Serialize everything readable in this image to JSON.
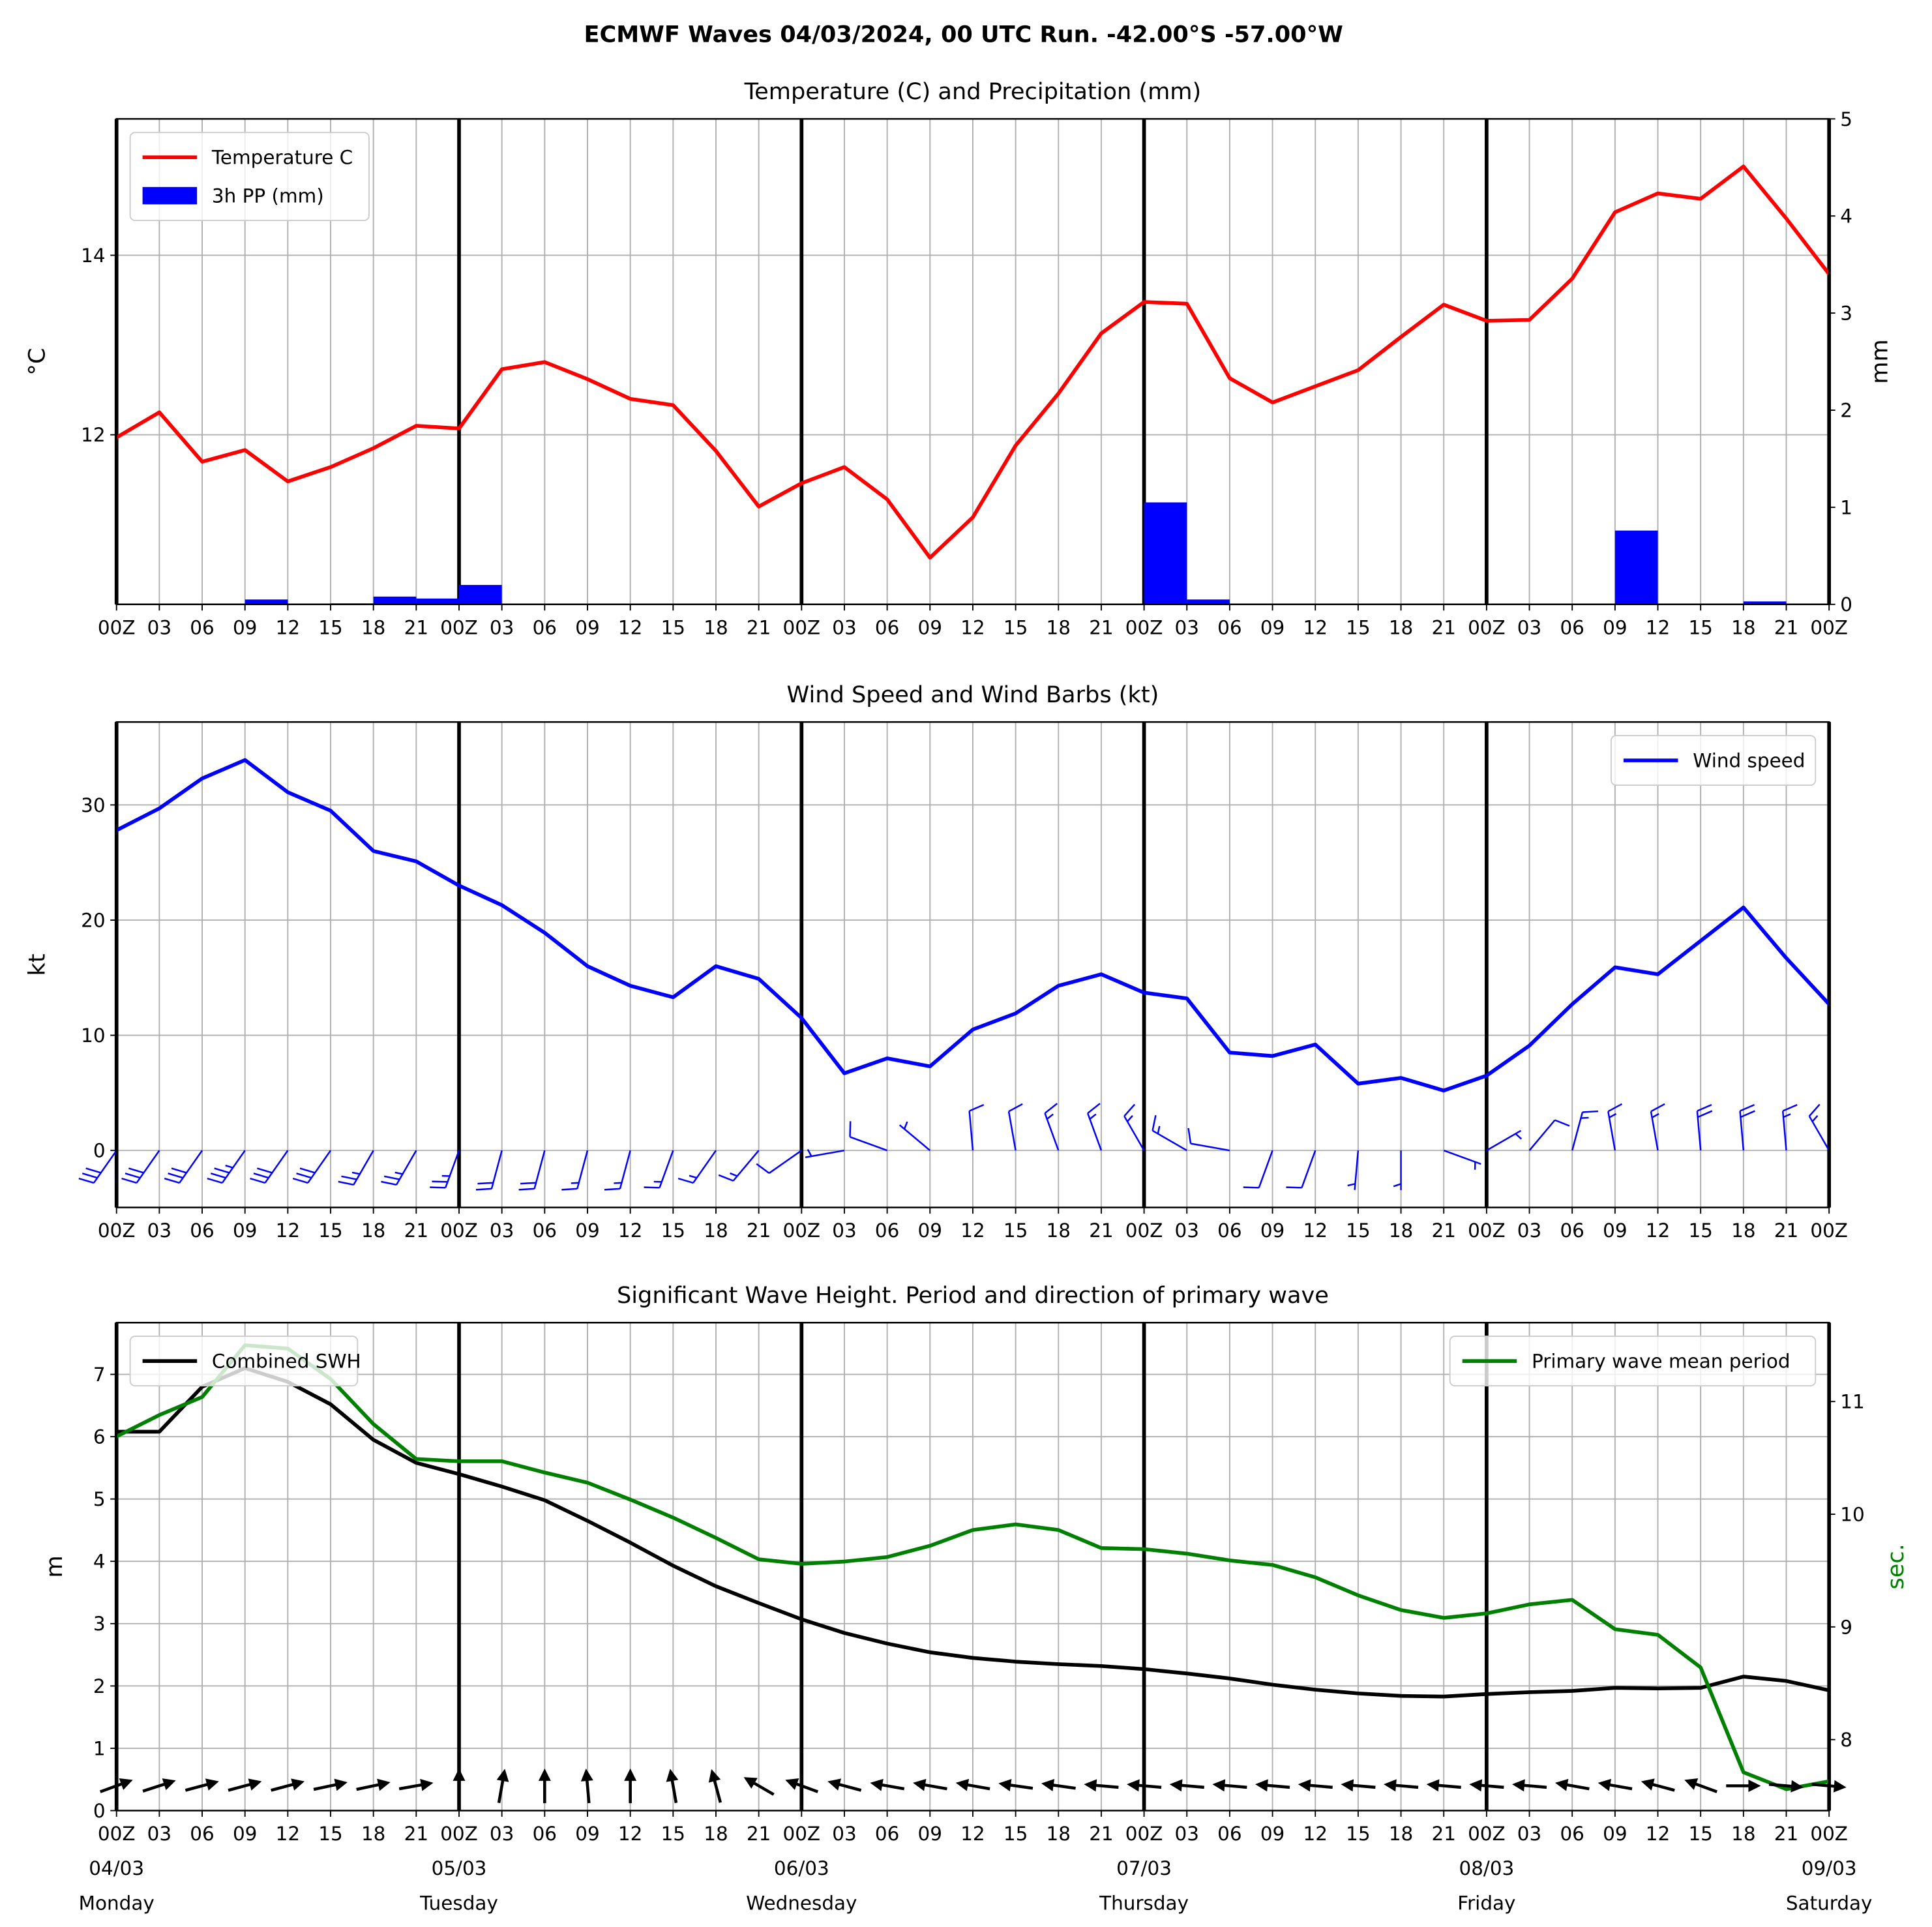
{
  "title": "ECMWF Waves 04/03/2024, 00 UTC Run. -42.00°S -57.00°W",
  "chart_data": [
    {
      "type": "line",
      "title": "Temperature (C) and Precipitation (mm)",
      "ylabel": "°C",
      "y2label": "mm",
      "x": [
        0,
        3,
        6,
        9,
        12,
        15,
        18,
        21,
        24,
        27,
        30,
        33,
        36,
        39,
        42,
        45,
        48,
        51,
        54,
        57,
        60,
        63,
        66,
        69,
        72,
        75,
        78,
        81,
        84,
        87,
        90,
        93,
        96,
        99,
        102,
        105,
        108,
        111,
        114,
        117,
        120
      ],
      "xlim": [
        0,
        120
      ],
      "xticks": [
        {
          "value": 0,
          "label": "00Z"
        },
        {
          "value": 3,
          "label": "03"
        },
        {
          "value": 6,
          "label": "06"
        },
        {
          "value": 9,
          "label": "09"
        },
        {
          "value": 12,
          "label": "12"
        },
        {
          "value": 15,
          "label": "15"
        },
        {
          "value": 18,
          "label": "18"
        },
        {
          "value": 21,
          "label": "21"
        },
        {
          "value": 24,
          "label": "00Z"
        },
        {
          "value": 27,
          "label": "03"
        },
        {
          "value": 30,
          "label": "06"
        },
        {
          "value": 33,
          "label": "09"
        },
        {
          "value": 36,
          "label": "12"
        },
        {
          "value": 39,
          "label": "15"
        },
        {
          "value": 42,
          "label": "18"
        },
        {
          "value": 45,
          "label": "21"
        },
        {
          "value": 48,
          "label": "00Z"
        },
        {
          "value": 51,
          "label": "03"
        },
        {
          "value": 54,
          "label": "06"
        },
        {
          "value": 57,
          "label": "09"
        },
        {
          "value": 60,
          "label": "12"
        },
        {
          "value": 63,
          "label": "15"
        },
        {
          "value": 66,
          "label": "18"
        },
        {
          "value": 69,
          "label": "21"
        },
        {
          "value": 72,
          "label": "00Z"
        },
        {
          "value": 75,
          "label": "03"
        },
        {
          "value": 78,
          "label": "06"
        },
        {
          "value": 81,
          "label": "09"
        },
        {
          "value": 84,
          "label": "12"
        },
        {
          "value": 87,
          "label": "15"
        },
        {
          "value": 90,
          "label": "18"
        },
        {
          "value": 93,
          "label": "21"
        },
        {
          "value": 96,
          "label": "00Z"
        },
        {
          "value": 99,
          "label": "03"
        },
        {
          "value": 102,
          "label": "06"
        },
        {
          "value": 105,
          "label": "09"
        },
        {
          "value": 108,
          "label": "12"
        },
        {
          "value": 111,
          "label": "15"
        },
        {
          "value": 114,
          "label": "18"
        },
        {
          "value": 117,
          "label": "21"
        },
        {
          "value": 120,
          "label": "00Z"
        }
      ],
      "day_lines": [
        0,
        24,
        48,
        72,
        96,
        120
      ],
      "ylim": [
        10.11,
        15.52
      ],
      "yticks": [
        12,
        14
      ],
      "y2lim": [
        0,
        5
      ],
      "y2ticks": [
        0,
        1,
        2,
        3,
        4,
        5
      ],
      "grid": true,
      "series": [
        {
          "name": "Temperature C",
          "color": "#ff0000",
          "legend": "upper left",
          "values": [
            11.97,
            12.25,
            11.7,
            11.83,
            11.48,
            11.64,
            11.85,
            12.1,
            12.07,
            12.73,
            12.81,
            12.62,
            12.4,
            12.33,
            11.82,
            11.2,
            11.46,
            11.64,
            11.28,
            10.63,
            11.08,
            11.88,
            12.46,
            13.13,
            13.48,
            13.46,
            12.63,
            12.36,
            12.54,
            12.72,
            13.09,
            13.45,
            13.27,
            13.28,
            13.74,
            14.48,
            14.69,
            14.63,
            14.99,
            14.41,
            13.79
          ]
        },
        {
          "name": "3h PP (mm)",
          "color": "#0000ff",
          "style": "bar",
          "axis": "y2",
          "legend": "upper left",
          "values": [
            0,
            0,
            0,
            0.05,
            0,
            0.01,
            0.08,
            0.06,
            0.2,
            0,
            0,
            0,
            0,
            0,
            0,
            0,
            0,
            0,
            0,
            0,
            0,
            0,
            0,
            0,
            1.05,
            0.05,
            0,
            0,
            0,
            0,
            0,
            0,
            0,
            0,
            0,
            0.76,
            0,
            0,
            0.03,
            0,
            null
          ]
        }
      ]
    },
    {
      "type": "line",
      "title": "Wind Speed and Wind Barbs (kt)",
      "ylabel": "kt",
      "x": [
        0,
        3,
        6,
        9,
        12,
        15,
        18,
        21,
        24,
        27,
        30,
        33,
        36,
        39,
        42,
        45,
        48,
        51,
        54,
        57,
        60,
        63,
        66,
        69,
        72,
        75,
        78,
        81,
        84,
        87,
        90,
        93,
        96,
        99,
        102,
        105,
        108,
        111,
        114,
        117,
        120
      ],
      "xlim": [
        0,
        120
      ],
      "xticks": [
        {
          "value": 0,
          "label": "00Z"
        },
        {
          "value": 3,
          "label": "03"
        },
        {
          "value": 6,
          "label": "06"
        },
        {
          "value": 9,
          "label": "09"
        },
        {
          "value": 12,
          "label": "12"
        },
        {
          "value": 15,
          "label": "15"
        },
        {
          "value": 18,
          "label": "18"
        },
        {
          "value": 21,
          "label": "21"
        },
        {
          "value": 24,
          "label": "00Z"
        },
        {
          "value": 27,
          "label": "03"
        },
        {
          "value": 30,
          "label": "06"
        },
        {
          "value": 33,
          "label": "09"
        },
        {
          "value": 36,
          "label": "12"
        },
        {
          "value": 39,
          "label": "15"
        },
        {
          "value": 42,
          "label": "18"
        },
        {
          "value": 45,
          "label": "21"
        },
        {
          "value": 48,
          "label": "00Z"
        },
        {
          "value": 51,
          "label": "03"
        },
        {
          "value": 54,
          "label": "06"
        },
        {
          "value": 57,
          "label": "09"
        },
        {
          "value": 60,
          "label": "12"
        },
        {
          "value": 63,
          "label": "15"
        },
        {
          "value": 66,
          "label": "18"
        },
        {
          "value": 69,
          "label": "21"
        },
        {
          "value": 72,
          "label": "00Z"
        },
        {
          "value": 75,
          "label": "03"
        },
        {
          "value": 78,
          "label": "06"
        },
        {
          "value": 81,
          "label": "09"
        },
        {
          "value": 84,
          "label": "12"
        },
        {
          "value": 87,
          "label": "15"
        },
        {
          "value": 90,
          "label": "18"
        },
        {
          "value": 93,
          "label": "21"
        },
        {
          "value": 96,
          "label": "00Z"
        },
        {
          "value": 99,
          "label": "03"
        },
        {
          "value": 102,
          "label": "06"
        },
        {
          "value": 105,
          "label": "09"
        },
        {
          "value": 108,
          "label": "12"
        },
        {
          "value": 111,
          "label": "15"
        },
        {
          "value": 114,
          "label": "18"
        },
        {
          "value": 117,
          "label": "21"
        },
        {
          "value": 120,
          "label": "00Z"
        }
      ],
      "day_lines": [
        0,
        24,
        48,
        72,
        96,
        120
      ],
      "ylim": [
        -4.95,
        37.2
      ],
      "yticks": [
        0,
        10,
        20,
        30
      ],
      "grid": true,
      "series": [
        {
          "name": "Wind speed",
          "color": "#0000ff",
          "legend": "upper right",
          "values": [
            27.8,
            29.7,
            32.3,
            33.9,
            31.1,
            29.5,
            26.0,
            25.1,
            23.0,
            21.3,
            18.9,
            16.0,
            14.3,
            13.3,
            16.0,
            14.9,
            11.5,
            6.7,
            8.0,
            7.3,
            10.5,
            11.9,
            14.3,
            15.3,
            13.7,
            13.2,
            8.5,
            8.2,
            9.2,
            5.8,
            6.3,
            5.2,
            6.5,
            9.1,
            12.7,
            15.9,
            15.3,
            18.2,
            21.1,
            16.7,
            12.7
          ]
        }
      ],
      "barbs": {
        "color": "#0000ff",
        "directions": [
          215,
          215,
          215,
          215,
          215,
          215,
          210,
          210,
          200,
          195,
          195,
          195,
          195,
          200,
          215,
          220,
          235,
          260,
          290,
          310,
          355,
          350,
          340,
          340,
          330,
          300,
          280,
          200,
          200,
          185,
          180,
          110,
          60,
          40,
          15,
          350,
          350,
          355,
          355,
          355,
          330
        ]
      }
    },
    {
      "type": "line",
      "title": "Significant Wave Height. Period and direction of primary wave",
      "ylabel": "m",
      "y2label": "sec.",
      "y2label_color": "#008000",
      "x": [
        0,
        3,
        6,
        9,
        12,
        15,
        18,
        21,
        24,
        27,
        30,
        33,
        36,
        39,
        42,
        45,
        48,
        51,
        54,
        57,
        60,
        63,
        66,
        69,
        72,
        75,
        78,
        81,
        84,
        87,
        90,
        93,
        96,
        99,
        102,
        105,
        108,
        111,
        114,
        117,
        120
      ],
      "xlim": [
        0,
        120
      ],
      "xticks": [
        {
          "value": 0,
          "label": "00Z"
        },
        {
          "value": 3,
          "label": "03"
        },
        {
          "value": 6,
          "label": "06"
        },
        {
          "value": 9,
          "label": "09"
        },
        {
          "value": 12,
          "label": "12"
        },
        {
          "value": 15,
          "label": "15"
        },
        {
          "value": 18,
          "label": "18"
        },
        {
          "value": 21,
          "label": "21"
        },
        {
          "value": 24,
          "label": "00Z"
        },
        {
          "value": 27,
          "label": "03"
        },
        {
          "value": 30,
          "label": "06"
        },
        {
          "value": 33,
          "label": "09"
        },
        {
          "value": 36,
          "label": "12"
        },
        {
          "value": 39,
          "label": "15"
        },
        {
          "value": 42,
          "label": "18"
        },
        {
          "value": 45,
          "label": "21"
        },
        {
          "value": 48,
          "label": "00Z"
        },
        {
          "value": 51,
          "label": "03"
        },
        {
          "value": 54,
          "label": "06"
        },
        {
          "value": 57,
          "label": "09"
        },
        {
          "value": 60,
          "label": "12"
        },
        {
          "value": 63,
          "label": "15"
        },
        {
          "value": 66,
          "label": "18"
        },
        {
          "value": 69,
          "label": "21"
        },
        {
          "value": 72,
          "label": "00Z"
        },
        {
          "value": 75,
          "label": "03"
        },
        {
          "value": 78,
          "label": "06"
        },
        {
          "value": 81,
          "label": "09"
        },
        {
          "value": 84,
          "label": "12"
        },
        {
          "value": 87,
          "label": "15"
        },
        {
          "value": 90,
          "label": "18"
        },
        {
          "value": 93,
          "label": "21"
        },
        {
          "value": 96,
          "label": "00Z"
        },
        {
          "value": 99,
          "label": "03"
        },
        {
          "value": 102,
          "label": "06"
        },
        {
          "value": 105,
          "label": "09"
        },
        {
          "value": 108,
          "label": "12"
        },
        {
          "value": 111,
          "label": "15"
        },
        {
          "value": 114,
          "label": "18"
        },
        {
          "value": 117,
          "label": "21"
        },
        {
          "value": 120,
          "label": "00Z"
        }
      ],
      "day_lines": [
        0,
        24,
        48,
        72,
        96,
        120
      ],
      "day_ticks": [
        {
          "value": 0,
          "label": "04/03",
          "day": "Monday"
        },
        {
          "value": 24,
          "label": "05/03",
          "day": "Tuesday"
        },
        {
          "value": 48,
          "label": "06/03",
          "day": "Wednesday"
        },
        {
          "value": 72,
          "label": "07/03",
          "day": "Thursday"
        },
        {
          "value": 96,
          "label": "08/03",
          "day": "Friday"
        },
        {
          "value": 120,
          "label": "09/03",
          "day": "Saturday"
        }
      ],
      "ylim": [
        0,
        7.83
      ],
      "yticks": [
        0,
        1,
        2,
        3,
        4,
        5,
        6,
        7
      ],
      "y2lim": [
        7.37,
        11.7
      ],
      "y2ticks": [
        8,
        9,
        10,
        11
      ],
      "grid": true,
      "series": [
        {
          "name": "Combined SWH",
          "color": "#000000",
          "legend": "upper left",
          "values": [
            6.08,
            6.08,
            6.8,
            7.1,
            6.88,
            6.52,
            5.95,
            5.58,
            5.4,
            5.2,
            4.98,
            4.65,
            4.3,
            3.93,
            3.6,
            3.33,
            3.07,
            2.85,
            2.68,
            2.54,
            2.45,
            2.39,
            2.35,
            2.32,
            2.27,
            2.2,
            2.12,
            2.02,
            1.94,
            1.88,
            1.84,
            1.83,
            1.87,
            1.9,
            1.92,
            1.97,
            1.96,
            1.97,
            2.15,
            2.08,
            1.93
          ]
        },
        {
          "name": "Primary wave mean period",
          "color": "#008000",
          "axis": "y2",
          "legend": "upper right",
          "values": [
            10.69,
            10.88,
            11.04,
            11.5,
            11.47,
            11.2,
            10.8,
            10.49,
            10.47,
            10.47,
            10.37,
            10.28,
            10.13,
            9.97,
            9.79,
            9.6,
            9.56,
            9.58,
            9.62,
            9.72,
            9.86,
            9.91,
            9.86,
            9.7,
            9.69,
            9.65,
            9.59,
            9.55,
            9.44,
            9.28,
            9.15,
            9.08,
            9.12,
            9.2,
            9.24,
            8.98,
            8.93,
            8.64,
            7.71,
            7.56,
            7.63
          ]
        }
      ],
      "wave_arrows": {
        "color": "#000000",
        "directions": [
          250,
          252,
          255,
          255,
          255,
          258,
          258,
          260,
          180,
          190,
          180,
          175,
          180,
          170,
          165,
          120,
          110,
          105,
          100,
          100,
          100,
          98,
          98,
          95,
          95,
          95,
          95,
          95,
          95,
          95,
          95,
          95,
          95,
          95,
          100,
          100,
          105,
          110,
          270,
          275,
          275
        ]
      }
    }
  ]
}
